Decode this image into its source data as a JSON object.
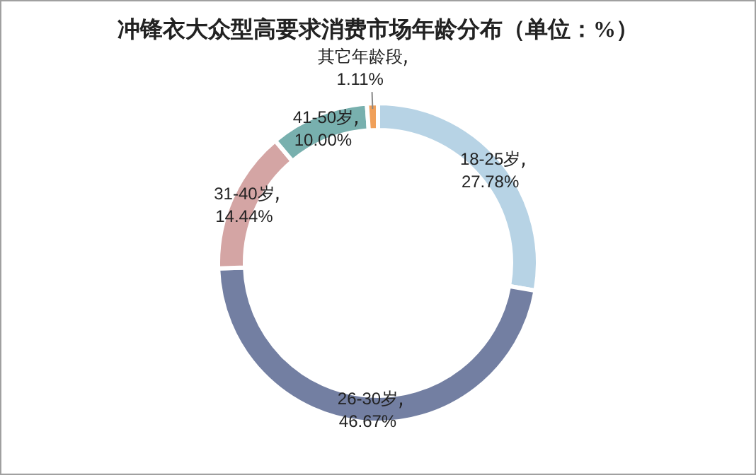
{
  "chart_data": {
    "type": "donut",
    "title": "冲锋衣大众型高要求消费市场年龄分布（单位：%）",
    "categories": [
      "18-25岁",
      "26-30岁",
      "31-40岁",
      "41-50岁",
      "其它年龄段"
    ],
    "values": [
      27.78,
      46.67,
      14.44,
      10.0,
      1.11
    ],
    "colors": [
      "#b7d3e5",
      "#737fa2",
      "#d4a5a4",
      "#78b0ae",
      "#f0a05a"
    ],
    "value_labels": [
      "27.78%",
      "46.67%",
      "14.44%",
      "10.00%",
      "1.11%"
    ]
  }
}
